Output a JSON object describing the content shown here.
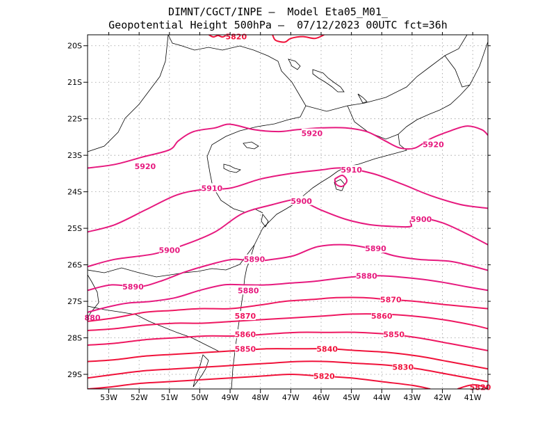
{
  "title": {
    "line1": "DIMNT/CGCT/INPE –  Model Eta05_M01_",
    "line2": "Geopotential Height 500hPa –  07/12/2023 00UTC fct=36h"
  },
  "map": {
    "lon_range": [
      -53.7,
      -40.5
    ],
    "lat_range": [
      -29.4,
      -19.7
    ],
    "x_ticks": [
      "53W",
      "52W",
      "51W",
      "50W",
      "49W",
      "48W",
      "47W",
      "46W",
      "45W",
      "44W",
      "43W",
      "42W",
      "41W"
    ],
    "y_ticks": [
      "20S",
      "21S",
      "22S",
      "23S",
      "24S",
      "25S",
      "26S",
      "27S",
      "28S",
      "29S"
    ],
    "gridlines": true,
    "colors": {
      "high": "#e6197e",
      "mid": "#ee1760",
      "low": "#f0123a",
      "coast": "#000000",
      "grid": "#999999"
    }
  },
  "contours": [
    {
      "level": 5920,
      "label": "5920"
    },
    {
      "level": 5910,
      "label": "5910"
    },
    {
      "level": 5900,
      "label": "5900"
    },
    {
      "level": 5890,
      "label": "5890"
    },
    {
      "level": 5880,
      "label": "5880"
    },
    {
      "level": 5870,
      "label": "5870"
    },
    {
      "level": 5860,
      "label": "5860"
    },
    {
      "level": 5850,
      "label": "5850"
    },
    {
      "level": 5840,
      "label": "5840"
    },
    {
      "level": 5830,
      "label": "5830"
    },
    {
      "level": 5820,
      "label": "5820"
    }
  ],
  "edge_labels": {
    "left": "880",
    "right": "5820"
  }
}
